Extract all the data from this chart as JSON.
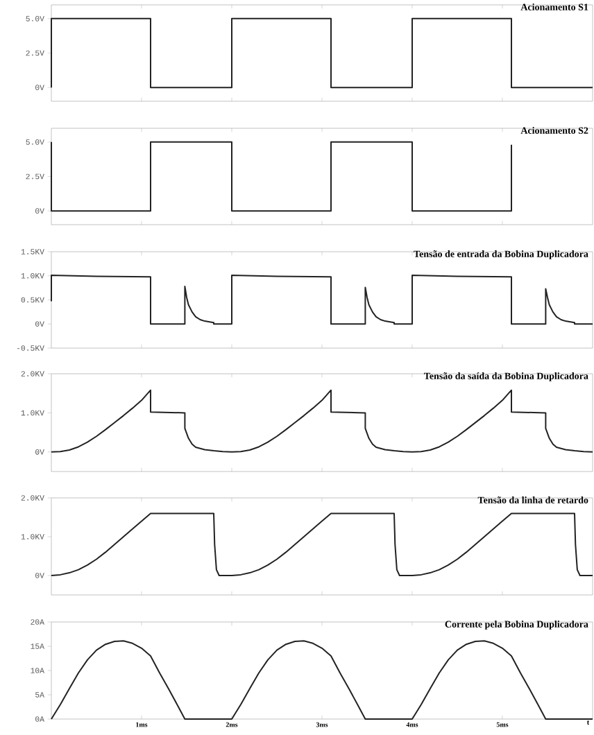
{
  "chart_data": [
    {
      "type": "line",
      "title": "Acionamento S1",
      "tick_labels": "y",
      "xlim": [
        0,
        6
      ],
      "ylim": [
        -1,
        6
      ],
      "xticks": [
        {
          "value": 1,
          "label": null
        },
        {
          "value": 2,
          "label": null
        },
        {
          "value": 3,
          "label": null
        },
        {
          "value": 4,
          "label": null
        },
        {
          "value": 5,
          "label": null
        }
      ],
      "yticks": [
        {
          "value": 0,
          "label": "0V"
        },
        {
          "value": 2.5,
          "label": "2.5V"
        },
        {
          "value": 5,
          "label": "5.0V"
        }
      ],
      "x": [
        0,
        0,
        1.1,
        1.1,
        2.0,
        2.0,
        3.1,
        3.1,
        4.0,
        4.0,
        5.1,
        5.1,
        6.0
      ],
      "series": [
        {
          "color": "#222222",
          "values": [
            0,
            5,
            5,
            0,
            0,
            5,
            5,
            0,
            0,
            5,
            5,
            0,
            0
          ]
        }
      ]
    },
    {
      "type": "line",
      "title": "Acionamento S2",
      "tick_labels": "y",
      "xlim": [
        0,
        6
      ],
      "ylim": [
        -1,
        6
      ],
      "xticks": [
        {
          "value": 1,
          "label": null
        },
        {
          "value": 2,
          "label": null
        },
        {
          "value": 3,
          "label": null
        },
        {
          "value": 4,
          "label": null
        },
        {
          "value": 5,
          "label": null
        }
      ],
      "yticks": [
        {
          "value": 0,
          "label": "0V"
        },
        {
          "value": 2.5,
          "label": "2.5V"
        },
        {
          "value": 5,
          "label": "5.0V"
        }
      ],
      "x": [
        0,
        0,
        1.1,
        1.1,
        2.0,
        2.0,
        3.1,
        3.1,
        4.0,
        4.0,
        5.1,
        5.1
      ],
      "series": [
        {
          "color": "#222222",
          "values": [
            5,
            0,
            0,
            5,
            5,
            0,
            0,
            5,
            5,
            0,
            0,
            4.8
          ]
        }
      ]
    },
    {
      "type": "line",
      "title": "Tensão de entrada da Bobina Duplicadora",
      "tick_labels": "y",
      "xlim": [
        0,
        6
      ],
      "ylim": [
        -0.5,
        1.5
      ],
      "xticks": [
        {
          "value": 1,
          "label": null
        },
        {
          "value": 2,
          "label": null
        },
        {
          "value": 3,
          "label": null
        },
        {
          "value": 4,
          "label": null
        },
        {
          "value": 5,
          "label": null
        }
      ],
      "yticks": [
        {
          "value": -0.5,
          "label": "-0.5KV"
        },
        {
          "value": 0,
          "label": "0V"
        },
        {
          "value": 0.5,
          "label": "0.5KV"
        },
        {
          "value": 1.0,
          "label": "1.0KV"
        },
        {
          "value": 1.5,
          "label": "1.5KV"
        }
      ],
      "x": [
        0,
        0,
        0.5,
        1.1,
        1.1,
        1.48,
        1.48,
        1.5,
        1.52,
        1.56,
        1.6,
        1.65,
        1.7,
        1.8,
        1.8,
        2.0,
        2.0,
        2.5,
        3.1,
        3.1,
        3.48,
        3.48,
        3.5,
        3.52,
        3.56,
        3.6,
        3.65,
        3.7,
        3.8,
        3.8,
        4.0,
        4.0,
        4.5,
        5.1,
        5.1,
        5.48,
        5.48,
        5.5,
        5.52,
        5.56,
        5.6,
        5.65,
        5.7,
        5.8,
        5.8,
        6.0
      ],
      "series": [
        {
          "color": "#222222",
          "values": [
            0.47,
            1.01,
            0.99,
            0.98,
            0,
            0,
            0.78,
            0.55,
            0.4,
            0.25,
            0.15,
            0.09,
            0.06,
            0.03,
            0,
            0,
            1.01,
            0.99,
            0.98,
            0,
            0,
            0.76,
            0.55,
            0.4,
            0.25,
            0.15,
            0.09,
            0.06,
            0.03,
            0,
            0,
            1.01,
            0.99,
            0.98,
            0,
            0,
            0.73,
            0.55,
            0.4,
            0.25,
            0.15,
            0.09,
            0.06,
            0.03,
            0,
            0
          ]
        }
      ]
    },
    {
      "type": "line",
      "title": "Tensão da saída da Bobina Duplicadora",
      "tick_labels": "y",
      "xlim": [
        0,
        6
      ],
      "ylim": [
        -0.5,
        2.0
      ],
      "xticks": [
        {
          "value": 1,
          "label": null
        },
        {
          "value": 2,
          "label": null
        },
        {
          "value": 3,
          "label": null
        },
        {
          "value": 4,
          "label": null
        },
        {
          "value": 5,
          "label": null
        }
      ],
      "yticks": [
        {
          "value": 0,
          "label": "0V"
        },
        {
          "value": 1.0,
          "label": "1.0KV"
        },
        {
          "value": 2.0,
          "label": "2.0KV"
        }
      ],
      "x": [
        0,
        0.1,
        0.2,
        0.3,
        0.4,
        0.5,
        0.6,
        0.7,
        0.8,
        0.9,
        1.0,
        1.1,
        1.1,
        1.48,
        1.48,
        1.52,
        1.56,
        1.6,
        1.7,
        1.8,
        1.9,
        2.0,
        2.1,
        2.2,
        2.3,
        2.4,
        2.5,
        2.6,
        2.7,
        2.8,
        2.9,
        3.0,
        3.1,
        3.1,
        3.48,
        3.48,
        3.52,
        3.56,
        3.6,
        3.7,
        3.8,
        3.9,
        4.0,
        4.1,
        4.2,
        4.3,
        4.4,
        4.5,
        4.6,
        4.7,
        4.8,
        4.9,
        5.0,
        5.1,
        5.1,
        5.48,
        5.48,
        5.52,
        5.56,
        5.6,
        5.7,
        5.8,
        5.9,
        6.0
      ],
      "series": [
        {
          "color": "#222222",
          "values": [
            0,
            0.01,
            0.05,
            0.13,
            0.25,
            0.4,
            0.57,
            0.75,
            0.93,
            1.12,
            1.32,
            1.58,
            1.02,
            1.0,
            0.6,
            0.35,
            0.2,
            0.12,
            0.06,
            0.03,
            0.01,
            0,
            0.01,
            0.05,
            0.13,
            0.25,
            0.4,
            0.57,
            0.75,
            0.93,
            1.12,
            1.32,
            1.58,
            1.02,
            1.0,
            0.6,
            0.35,
            0.2,
            0.12,
            0.06,
            0.03,
            0.01,
            0,
            0.01,
            0.05,
            0.13,
            0.25,
            0.4,
            0.57,
            0.75,
            0.93,
            1.12,
            1.32,
            1.58,
            1.02,
            1.0,
            0.6,
            0.35,
            0.2,
            0.12,
            0.06,
            0.03,
            0.01,
            0
          ]
        }
      ]
    },
    {
      "type": "line",
      "title": "Tensão da linha de retardo",
      "tick_labels": "y",
      "xlim": [
        0,
        6
      ],
      "ylim": [
        -0.5,
        2.0
      ],
      "xticks": [
        {
          "value": 1,
          "label": null
        },
        {
          "value": 2,
          "label": null
        },
        {
          "value": 3,
          "label": null
        },
        {
          "value": 4,
          "label": null
        },
        {
          "value": 5,
          "label": null
        }
      ],
      "yticks": [
        {
          "value": 0,
          "label": "0V"
        },
        {
          "value": 1.0,
          "label": "1.0KV"
        },
        {
          "value": 2.0,
          "label": "2.0KV"
        }
      ],
      "x": [
        0,
        0.1,
        0.2,
        0.3,
        0.4,
        0.5,
        0.6,
        0.7,
        0.8,
        0.9,
        1.0,
        1.1,
        1.8,
        1.81,
        1.83,
        1.86,
        2.0,
        2.1,
        2.2,
        2.3,
        2.4,
        2.5,
        2.6,
        2.7,
        2.8,
        2.9,
        3.0,
        3.1,
        3.8,
        3.81,
        3.83,
        3.86,
        4.0,
        4.1,
        4.2,
        4.3,
        4.4,
        4.5,
        4.6,
        4.7,
        4.8,
        4.9,
        5.0,
        5.1,
        5.8,
        5.81,
        5.83,
        5.86,
        6.0
      ],
      "series": [
        {
          "color": "#222222",
          "values": [
            0,
            0.02,
            0.07,
            0.15,
            0.27,
            0.42,
            0.6,
            0.8,
            1.0,
            1.2,
            1.4,
            1.6,
            1.6,
            0.8,
            0.15,
            0,
            0,
            0.02,
            0.07,
            0.15,
            0.27,
            0.42,
            0.6,
            0.8,
            1.0,
            1.2,
            1.4,
            1.6,
            1.6,
            0.8,
            0.15,
            0,
            0,
            0.02,
            0.07,
            0.15,
            0.27,
            0.42,
            0.6,
            0.8,
            1.0,
            1.2,
            1.4,
            1.6,
            1.6,
            0.8,
            0.15,
            0,
            0
          ]
        }
      ]
    },
    {
      "type": "line",
      "title": "Corrente pela Bobina Duplicadora",
      "xlabel": "t",
      "xlim": [
        0,
        6
      ],
      "ylim": [
        0,
        20
      ],
      "xticks": [
        {
          "value": 1,
          "label": "1ms"
        },
        {
          "value": 2,
          "label": "2ms"
        },
        {
          "value": 3,
          "label": "3ms"
        },
        {
          "value": 4,
          "label": "4ms"
        },
        {
          "value": 5,
          "label": "5ms"
        }
      ],
      "yticks": [
        {
          "value": 0,
          "label": "0A"
        },
        {
          "value": 5,
          "label": "5A"
        },
        {
          "value": 10,
          "label": "10A"
        },
        {
          "value": 15,
          "label": "15A"
        },
        {
          "value": 20,
          "label": "20A"
        }
      ],
      "x": [
        0,
        0.1,
        0.2,
        0.3,
        0.4,
        0.5,
        0.6,
        0.7,
        0.8,
        0.9,
        1.0,
        1.1,
        1.2,
        1.3,
        1.4,
        1.48,
        2.0,
        2.1,
        2.2,
        2.3,
        2.4,
        2.5,
        2.6,
        2.7,
        2.8,
        2.9,
        3.0,
        3.1,
        3.2,
        3.3,
        3.4,
        3.48,
        4.0,
        4.1,
        4.2,
        4.3,
        4.4,
        4.5,
        4.6,
        4.7,
        4.8,
        4.9,
        5.0,
        5.1,
        5.2,
        5.3,
        5.4,
        5.48,
        6.0
      ],
      "series": [
        {
          "color": "#222222",
          "values": [
            0,
            3,
            6.3,
            9.5,
            12.2,
            14.2,
            15.4,
            16,
            16.1,
            15.6,
            14.6,
            13,
            9.5,
            6.2,
            2.8,
            0,
            0,
            3,
            6.3,
            9.5,
            12.2,
            14.2,
            15.4,
            16,
            16.1,
            15.6,
            14.6,
            13,
            9.5,
            6.2,
            2.8,
            0,
            0,
            3,
            6.3,
            9.5,
            12.2,
            14.2,
            15.4,
            16,
            16.1,
            15.6,
            14.6,
            13,
            9.5,
            6.2,
            2.8,
            0,
            0
          ]
        }
      ]
    }
  ]
}
